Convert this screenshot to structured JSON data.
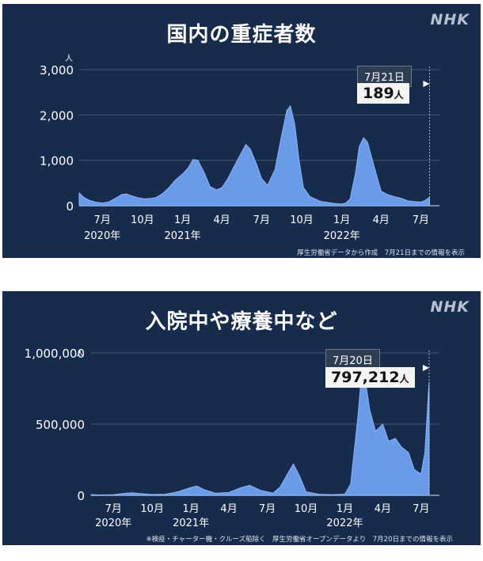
{
  "brand": "NHK",
  "chart_data": [
    {
      "type": "area",
      "title": "国内の重症者数",
      "yunit": "人",
      "ylim": [
        0,
        3400
      ],
      "yticks": [
        "0",
        "1,000",
        "2,000",
        "3,000"
      ],
      "ytick_values": [
        0,
        1000,
        2000,
        3000
      ],
      "xticks": [
        "7月",
        "10月",
        "1月",
        "4月",
        "7月",
        "10月",
        "1月",
        "4月",
        "7月"
      ],
      "xtick_dates": [
        "2020-07",
        "2020-10",
        "2021-01",
        "2021-04",
        "2021-07",
        "2021-10",
        "2022-01",
        "2022-04",
        "2022-07"
      ],
      "year_labels": [
        "2020年",
        "2021年",
        "2022年"
      ],
      "year_dates": [
        "2020-07",
        "2021-01",
        "2022-01"
      ],
      "callout": {
        "date": "7月21日",
        "value": "189",
        "unit": "人"
      },
      "note": "厚生労働省データから作成　7月21日までの情報を表示",
      "grid": true,
      "series": [
        {
          "color": "#6a9be8",
          "x": [
            "2020-05-09",
            "2020-05-20",
            "2020-06-01",
            "2020-06-15",
            "2020-07-01",
            "2020-07-15",
            "2020-08-01",
            "2020-08-15",
            "2020-08-25",
            "2020-09-05",
            "2020-09-20",
            "2020-10-05",
            "2020-10-20",
            "2020-11-01",
            "2020-11-15",
            "2020-12-01",
            "2020-12-15",
            "2021-01-01",
            "2021-01-15",
            "2021-01-25",
            "2021-02-05",
            "2021-02-20",
            "2021-03-05",
            "2021-03-20",
            "2021-04-01",
            "2021-04-15",
            "2021-05-01",
            "2021-05-15",
            "2021-05-26",
            "2021-06-05",
            "2021-06-20",
            "2021-07-01",
            "2021-07-15",
            "2021-08-01",
            "2021-08-15",
            "2021-08-28",
            "2021-09-05",
            "2021-09-15",
            "2021-09-25",
            "2021-10-05",
            "2021-10-20",
            "2021-11-01",
            "2021-11-15",
            "2021-12-01",
            "2021-12-15",
            "2022-01-01",
            "2022-01-10",
            "2022-01-20",
            "2022-02-01",
            "2022-02-10",
            "2022-02-20",
            "2022-03-01",
            "2022-03-15",
            "2022-04-01",
            "2022-04-15",
            "2022-05-01",
            "2022-05-15",
            "2022-06-01",
            "2022-06-15",
            "2022-07-01",
            "2022-07-10",
            "2022-07-21"
          ],
          "y": [
            280,
            180,
            120,
            80,
            60,
            80,
            170,
            250,
            260,
            220,
            180,
            150,
            160,
            180,
            260,
            400,
            560,
            700,
            850,
            1020,
            1000,
            720,
            420,
            350,
            400,
            600,
            900,
            1150,
            1350,
            1250,
            900,
            600,
            450,
            800,
            1500,
            2100,
            2200,
            1800,
            1000,
            400,
            200,
            150,
            90,
            70,
            50,
            40,
            60,
            150,
            700,
            1300,
            1500,
            1400,
            900,
            320,
            250,
            200,
            170,
            110,
            90,
            80,
            110,
            189
          ]
        }
      ]
    },
    {
      "type": "area",
      "title": "入院中や療養中など",
      "yunit": "人",
      "ylim": [
        0,
        1100000
      ],
      "yticks": [
        "0",
        "500,000",
        "1,000,000"
      ],
      "ytick_values": [
        0,
        500000,
        1000000
      ],
      "xticks": [
        "7月",
        "10月",
        "1月",
        "4月",
        "7月",
        "10月",
        "1月",
        "4月",
        "7月"
      ],
      "xtick_dates": [
        "2020-07",
        "2020-10",
        "2021-01",
        "2021-04",
        "2021-07",
        "2021-10",
        "2022-01",
        "2022-04",
        "2022-07"
      ],
      "year_labels": [
        "2020年",
        "2021年",
        "2022年"
      ],
      "year_dates": [
        "2020-07",
        "2021-01",
        "2022-01"
      ],
      "callout": {
        "date": "7月20日",
        "value": "797,212",
        "unit": "人"
      },
      "note": "※検疫・チャーター機・クルーズ船除く　厚生労働省オープンデータより　7月20日までの情報を表示",
      "grid": true,
      "series": [
        {
          "color": "#6a9be8",
          "x": [
            "2020-05-09",
            "2020-06-01",
            "2020-07-01",
            "2020-08-01",
            "2020-08-15",
            "2020-09-01",
            "2020-10-01",
            "2020-11-01",
            "2020-12-01",
            "2021-01-01",
            "2021-01-15",
            "2021-02-01",
            "2021-03-01",
            "2021-04-01",
            "2021-05-01",
            "2021-05-20",
            "2021-06-15",
            "2021-07-15",
            "2021-08-01",
            "2021-08-20",
            "2021-09-01",
            "2021-09-15",
            "2021-10-01",
            "2021-11-01",
            "2021-12-01",
            "2022-01-01",
            "2022-01-15",
            "2022-02-01",
            "2022-02-10",
            "2022-02-20",
            "2022-03-01",
            "2022-03-15",
            "2022-04-01",
            "2022-04-15",
            "2022-05-01",
            "2022-05-15",
            "2022-06-01",
            "2022-06-15",
            "2022-07-01",
            "2022-07-10",
            "2022-07-20"
          ],
          "y": [
            5000,
            3000,
            4000,
            15000,
            18000,
            12000,
            6000,
            8000,
            25000,
            55000,
            65000,
            40000,
            15000,
            20000,
            55000,
            70000,
            35000,
            15000,
            60000,
            160000,
            220000,
            140000,
            25000,
            8000,
            5000,
            8000,
            80000,
            550000,
            860000,
            780000,
            600000,
            450000,
            500000,
            380000,
            400000,
            340000,
            300000,
            180000,
            150000,
            300000,
            797212
          ]
        }
      ]
    }
  ]
}
